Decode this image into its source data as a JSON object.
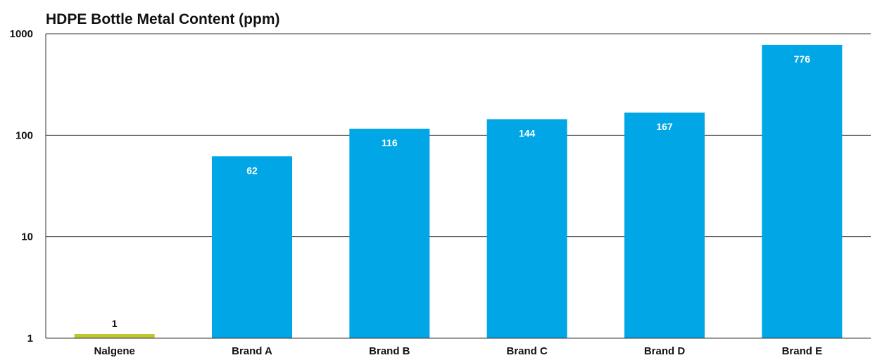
{
  "chart_data": {
    "type": "bar",
    "title": "HDPE Bottle Metal Content (ppm)",
    "xlabel": "",
    "ylabel": "",
    "y_scale": "log",
    "ylim": [
      1,
      1000
    ],
    "y_ticks": [
      {
        "value": 1,
        "label": "1"
      },
      {
        "value": 10,
        "label": "10"
      },
      {
        "value": 100,
        "label": "100"
      },
      {
        "value": 1000,
        "label": "1000"
      }
    ],
    "grid": true,
    "legend": "none",
    "categories": [
      "Nalgene",
      "Brand A",
      "Brand B",
      "Brand C",
      "Brand D",
      "Brand E"
    ],
    "values": [
      1,
      62,
      116,
      144,
      167,
      776
    ],
    "data_labels": [
      "1",
      "62",
      "116",
      "144",
      "167",
      "776"
    ],
    "colors": [
      "#bfc72e",
      "#00a6e6",
      "#00a6e6",
      "#00a6e6",
      "#00a6e6",
      "#00a6e6"
    ],
    "label_colors": [
      "#111111",
      "#ffffff",
      "#ffffff",
      "#ffffff",
      "#ffffff",
      "#ffffff"
    ]
  }
}
